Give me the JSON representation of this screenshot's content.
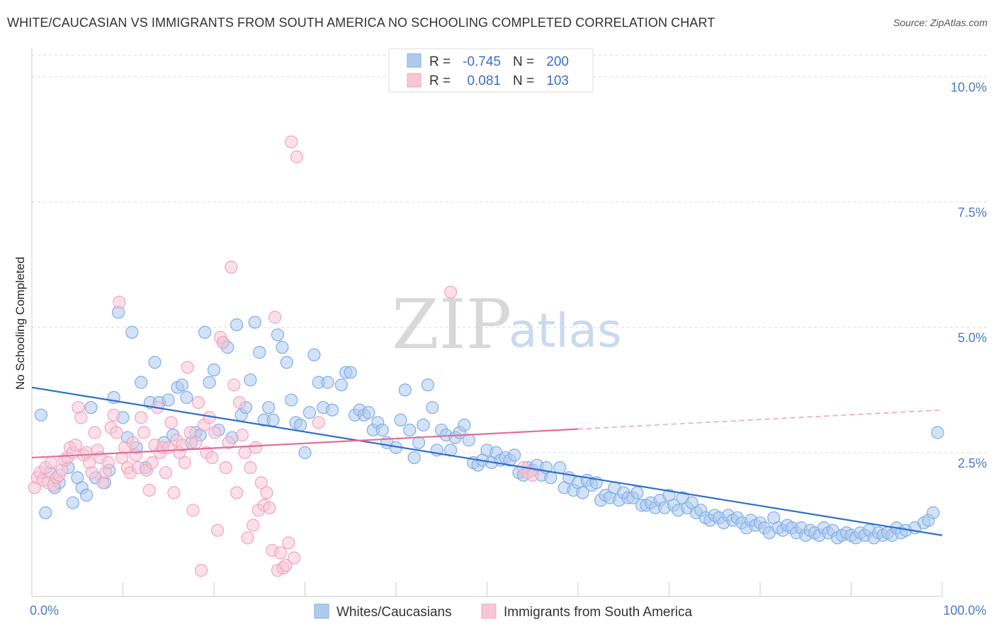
{
  "title": "WHITE/CAUCASIAN VS IMMIGRANTS FROM SOUTH AMERICA NO SCHOOLING COMPLETED CORRELATION CHART",
  "source": "Source: ZipAtlas.com",
  "watermark": {
    "zip": "ZIP",
    "atlas": "atlas"
  },
  "chart_data": {
    "type": "scatter",
    "ylabel": "No Schooling Completed",
    "xlim": [
      0,
      100
    ],
    "ylim": [
      0,
      10.4
    ],
    "y_ticks": [
      {
        "value": 2.5,
        "label": "2.5%"
      },
      {
        "value": 5.0,
        "label": "5.0%"
      },
      {
        "value": 7.5,
        "label": "7.5%"
      },
      {
        "value": 10.0,
        "label": "10.0%"
      }
    ],
    "x_ticks": [
      {
        "value": 0,
        "label": "0.0%"
      },
      {
        "value": 100,
        "label": "100.0%"
      }
    ],
    "grid": true,
    "legend_position": "top-center",
    "stats": [
      {
        "r_label": "R =",
        "r": "-0.745",
        "n_label": "N =",
        "n": "200",
        "color": "#7eaee5"
      },
      {
        "r_label": "R =",
        "r": "0.081",
        "n_label": "N =",
        "n": "103",
        "color": "#f2a3bf"
      }
    ],
    "series": [
      {
        "name": "Whites/Caucasians",
        "color": "#7eaee5",
        "fill": "#aecbee",
        "trend": {
          "x": [
            0,
            100
          ],
          "y": [
            3.8,
            0.85
          ],
          "color": "#2e6fce"
        },
        "points": [
          [
            1,
            3.25
          ],
          [
            1.5,
            1.3
          ],
          [
            2,
            2.1
          ],
          [
            2.5,
            1.8
          ],
          [
            3,
            1.9
          ],
          [
            4,
            2.2
          ],
          [
            4.5,
            1.5
          ],
          [
            5,
            2.0
          ],
          [
            5.5,
            1.8
          ],
          [
            6,
            1.65
          ],
          [
            6.5,
            3.4
          ],
          [
            7,
            2.0
          ],
          [
            8,
            1.9
          ],
          [
            8.5,
            2.15
          ],
          [
            9,
            3.6
          ],
          [
            9.5,
            5.3
          ],
          [
            10,
            3.2
          ],
          [
            10.5,
            2.8
          ],
          [
            11,
            4.9
          ],
          [
            11.5,
            2.6
          ],
          [
            12,
            3.9
          ],
          [
            12.5,
            2.2
          ],
          [
            13,
            3.5
          ],
          [
            13.5,
            4.3
          ],
          [
            14,
            3.5
          ],
          [
            14.5,
            2.7
          ],
          [
            15,
            3.55
          ],
          [
            15.5,
            2.85
          ],
          [
            16,
            3.8
          ],
          [
            16.5,
            3.85
          ],
          [
            17,
            3.6
          ],
          [
            17.5,
            2.7
          ],
          [
            18,
            2.9
          ],
          [
            18.5,
            2.85
          ],
          [
            19,
            4.9
          ],
          [
            19.5,
            3.9
          ],
          [
            20,
            4.15
          ],
          [
            20.5,
            2.95
          ],
          [
            21,
            4.7
          ],
          [
            21.5,
            4.6
          ],
          [
            22,
            2.8
          ],
          [
            22.5,
            5.05
          ],
          [
            23,
            3.25
          ],
          [
            23.5,
            3.4
          ],
          [
            24,
            3.95
          ],
          [
            24.5,
            5.1
          ],
          [
            25,
            4.5
          ],
          [
            25.5,
            3.15
          ],
          [
            26,
            3.4
          ],
          [
            26.5,
            3.15
          ],
          [
            27,
            4.85
          ],
          [
            27.5,
            4.6
          ],
          [
            28,
            4.3
          ],
          [
            28.5,
            3.55
          ],
          [
            29,
            3.1
          ],
          [
            29.5,
            3.05
          ],
          [
            30,
            2.5
          ],
          [
            30.5,
            3.3
          ],
          [
            31,
            4.45
          ],
          [
            31.5,
            3.9
          ],
          [
            32,
            3.4
          ],
          [
            32.5,
            3.9
          ],
          [
            33,
            3.35
          ],
          [
            34,
            3.85
          ],
          [
            34.5,
            4.1
          ],
          [
            35,
            4.1
          ],
          [
            35.5,
            3.25
          ],
          [
            36,
            3.35
          ],
          [
            36.5,
            3.25
          ],
          [
            37,
            3.3
          ],
          [
            37.5,
            2.95
          ],
          [
            38,
            3.1
          ],
          [
            38.5,
            2.95
          ],
          [
            39,
            2.7
          ],
          [
            40,
            2.6
          ],
          [
            40.5,
            3.15
          ],
          [
            41,
            3.75
          ],
          [
            41.5,
            2.95
          ],
          [
            42,
            2.4
          ],
          [
            42.5,
            2.7
          ],
          [
            43,
            3.05
          ],
          [
            43.5,
            3.85
          ],
          [
            44,
            3.4
          ],
          [
            44.5,
            2.55
          ],
          [
            45,
            2.95
          ],
          [
            45.5,
            2.85
          ],
          [
            46,
            2.55
          ],
          [
            46.5,
            2.8
          ],
          [
            47,
            2.9
          ],
          [
            47.5,
            3.05
          ],
          [
            48,
            2.75
          ],
          [
            48.5,
            2.3
          ],
          [
            49,
            2.25
          ],
          [
            49.5,
            2.35
          ],
          [
            50,
            2.55
          ],
          [
            50.5,
            2.3
          ],
          [
            51,
            2.5
          ],
          [
            51.5,
            2.35
          ],
          [
            52,
            2.4
          ],
          [
            52.5,
            2.35
          ],
          [
            53,
            2.45
          ],
          [
            53.5,
            2.1
          ],
          [
            54,
            2.05
          ],
          [
            54.5,
            2.2
          ],
          [
            55,
            2.15
          ],
          [
            55.5,
            2.25
          ],
          [
            56,
            2.05
          ],
          [
            56.5,
            2.2
          ],
          [
            57,
            2.0
          ],
          [
            58,
            2.2
          ],
          [
            58.5,
            1.8
          ],
          [
            59,
            2.0
          ],
          [
            59.5,
            1.75
          ],
          [
            60,
            1.9
          ],
          [
            60.5,
            1.7
          ],
          [
            61,
            1.95
          ],
          [
            61.5,
            1.85
          ],
          [
            62,
            1.9
          ],
          [
            62.5,
            1.55
          ],
          [
            63,
            1.65
          ],
          [
            63.5,
            1.6
          ],
          [
            64,
            1.8
          ],
          [
            64.5,
            1.55
          ],
          [
            65,
            1.7
          ],
          [
            65.5,
            1.6
          ],
          [
            66,
            1.6
          ],
          [
            66.5,
            1.7
          ],
          [
            67,
            1.45
          ],
          [
            67.5,
            1.45
          ],
          [
            68,
            1.5
          ],
          [
            68.5,
            1.4
          ],
          [
            69,
            1.55
          ],
          [
            69.5,
            1.4
          ],
          [
            70,
            1.65
          ],
          [
            70.5,
            1.45
          ],
          [
            71,
            1.35
          ],
          [
            71.5,
            1.6
          ],
          [
            72,
            1.4
          ],
          [
            72.5,
            1.5
          ],
          [
            73,
            1.3
          ],
          [
            73.5,
            1.35
          ],
          [
            74,
            1.2
          ],
          [
            74.5,
            1.15
          ],
          [
            75,
            1.25
          ],
          [
            75.5,
            1.2
          ],
          [
            76,
            1.1
          ],
          [
            76.5,
            1.25
          ],
          [
            77,
            1.15
          ],
          [
            77.5,
            1.2
          ],
          [
            78,
            1.1
          ],
          [
            78.5,
            1.0
          ],
          [
            79,
            1.15
          ],
          [
            79.5,
            1.05
          ],
          [
            80,
            1.1
          ],
          [
            80.5,
            1.0
          ],
          [
            81,
            0.9
          ],
          [
            81.5,
            1.2
          ],
          [
            82,
            1.0
          ],
          [
            82.5,
            0.95
          ],
          [
            83,
            1.05
          ],
          [
            83.5,
            1.0
          ],
          [
            84,
            0.9
          ],
          [
            84.5,
            1.0
          ],
          [
            85,
            0.85
          ],
          [
            85.5,
            0.95
          ],
          [
            86,
            0.9
          ],
          [
            86.5,
            0.85
          ],
          [
            87,
            1.0
          ],
          [
            87.5,
            0.9
          ],
          [
            88,
            0.95
          ],
          [
            88.5,
            0.8
          ],
          [
            89,
            0.85
          ],
          [
            89.5,
            0.9
          ],
          [
            90,
            0.85
          ],
          [
            90.5,
            0.8
          ],
          [
            91,
            0.9
          ],
          [
            91.5,
            0.85
          ],
          [
            92,
            0.95
          ],
          [
            92.5,
            0.8
          ],
          [
            93,
            0.9
          ],
          [
            93.5,
            0.85
          ],
          [
            94,
            0.9
          ],
          [
            94.5,
            0.85
          ],
          [
            95,
            1.0
          ],
          [
            95.5,
            0.9
          ],
          [
            96,
            0.95
          ],
          [
            97,
            1.0
          ],
          [
            98,
            1.1
          ],
          [
            98.5,
            1.15
          ],
          [
            99,
            1.3
          ],
          [
            99.5,
            2.9
          ]
        ]
      },
      {
        "name": "Immigrants from South America",
        "color": "#f2a3bf",
        "fill": "#f7c6d7",
        "trend_solid": {
          "x": [
            0,
            60
          ],
          "y": [
            2.4,
            2.97
          ],
          "color": "#e36c97"
        },
        "trend_dashed": {
          "x": [
            60,
            100
          ],
          "y": [
            2.97,
            3.35
          ],
          "color": "#eea3be"
        },
        "points": [
          [
            0.3,
            1.8
          ],
          [
            0.6,
            2.0
          ],
          [
            0.9,
            2.1
          ],
          [
            1.2,
            1.95
          ],
          [
            1.5,
            2.2
          ],
          [
            1.8,
            1.9
          ],
          [
            2.1,
            2.3
          ],
          [
            2.4,
            1.85
          ],
          [
            2.7,
            2.0
          ],
          [
            3,
            2.05
          ],
          [
            3.3,
            2.15
          ],
          [
            3.6,
            2.35
          ],
          [
            3.9,
            2.4
          ],
          [
            4.2,
            2.6
          ],
          [
            4.5,
            2.5
          ],
          [
            4.8,
            2.65
          ],
          [
            5.1,
            3.4
          ],
          [
            5.4,
            3.2
          ],
          [
            5.7,
            2.45
          ],
          [
            6,
            2.5
          ],
          [
            6.3,
            2.3
          ],
          [
            6.6,
            2.1
          ],
          [
            6.9,
            2.9
          ],
          [
            7.2,
            2.55
          ],
          [
            7.5,
            2.4
          ],
          [
            7.8,
            1.9
          ],
          [
            8.1,
            2.1
          ],
          [
            8.4,
            2.3
          ],
          [
            8.7,
            3.0
          ],
          [
            9,
            3.25
          ],
          [
            9.3,
            2.9
          ],
          [
            9.6,
            5.5
          ],
          [
            9.9,
            2.4
          ],
          [
            10.2,
            2.6
          ],
          [
            10.5,
            2.2
          ],
          [
            10.8,
            2.1
          ],
          [
            11.1,
            2.7
          ],
          [
            11.4,
            2.45
          ],
          [
            11.7,
            2.2
          ],
          [
            12,
            3.2
          ],
          [
            12.3,
            2.9
          ],
          [
            12.6,
            2.15
          ],
          [
            12.9,
            1.75
          ],
          [
            13.2,
            2.3
          ],
          [
            13.5,
            2.65
          ],
          [
            13.8,
            3.4
          ],
          [
            14.1,
            2.5
          ],
          [
            14.4,
            2.6
          ],
          [
            14.7,
            2.1
          ],
          [
            15,
            2.6
          ],
          [
            15.3,
            3.1
          ],
          [
            15.6,
            1.7
          ],
          [
            15.9,
            2.75
          ],
          [
            16.2,
            2.5
          ],
          [
            16.5,
            2.65
          ],
          [
            16.8,
            2.3
          ],
          [
            17.1,
            4.2
          ],
          [
            17.4,
            2.9
          ],
          [
            17.7,
            1.35
          ],
          [
            18,
            2.7
          ],
          [
            18.3,
            3.5
          ],
          [
            18.6,
            0.15
          ],
          [
            18.9,
            3.05
          ],
          [
            19.2,
            2.5
          ],
          [
            19.5,
            3.2
          ],
          [
            19.8,
            2.4
          ],
          [
            20.1,
            2.9
          ],
          [
            20.4,
            0.95
          ],
          [
            20.7,
            4.8
          ],
          [
            21,
            4.7
          ],
          [
            21.3,
            2.2
          ],
          [
            21.6,
            2.7
          ],
          [
            21.9,
            6.2
          ],
          [
            22.2,
            3.85
          ],
          [
            22.5,
            1.7
          ],
          [
            22.8,
            3.5
          ],
          [
            23.1,
            2.85
          ],
          [
            23.4,
            2.5
          ],
          [
            23.7,
            0.8
          ],
          [
            24,
            2.2
          ],
          [
            24.3,
            1.05
          ],
          [
            24.6,
            2.6
          ],
          [
            24.9,
            1.35
          ],
          [
            25.2,
            1.9
          ],
          [
            25.5,
            1.45
          ],
          [
            25.8,
            1.7
          ],
          [
            26.1,
            1.4
          ],
          [
            26.4,
            0.55
          ],
          [
            26.7,
            5.2
          ],
          [
            27,
            0.15
          ],
          [
            27.3,
            0.5
          ],
          [
            27.6,
            0.2
          ],
          [
            27.9,
            0.25
          ],
          [
            28.2,
            0.7
          ],
          [
            28.5,
            8.7
          ],
          [
            28.8,
            0.4
          ],
          [
            29.1,
            8.4
          ],
          [
            31.5,
            3.1
          ],
          [
            46,
            5.7
          ],
          [
            54,
            2.2
          ],
          [
            54.5,
            2.1
          ],
          [
            55,
            2.05
          ]
        ]
      }
    ]
  }
}
